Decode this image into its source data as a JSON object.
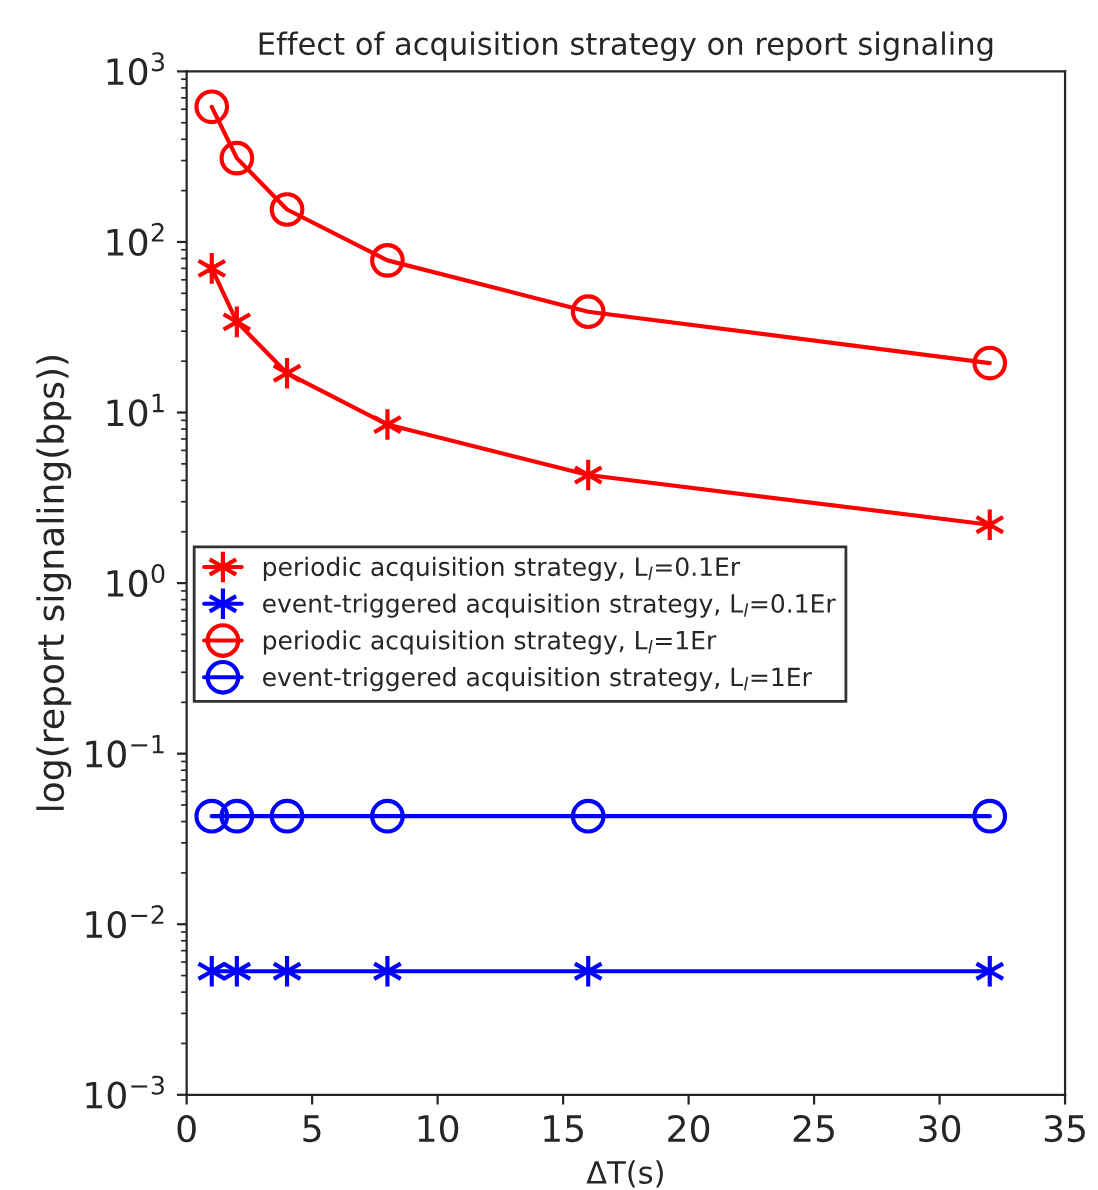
{
  "chart_data": {
    "type": "line",
    "title": "Effect of acquisition strategy on report signaling",
    "xlabel": "ΔT(s)",
    "ylabel": "log(report signaling(bps))",
    "x": [
      1,
      2,
      4,
      8,
      16,
      32
    ],
    "series": [
      {
        "name": "periodic acquisition strategy, L$_{l}$=0.1Er",
        "color": "#ff0000",
        "marker": "cross",
        "values": [
          70,
          34,
          17,
          8.5,
          4.3,
          2.2
        ]
      },
      {
        "name": "event-triggered acquisition strategy, L$_{l}$=0.1Er",
        "color": "#0000ff",
        "marker": "cross",
        "values": [
          0.0053,
          0.0053,
          0.0053,
          0.0053,
          0.0053,
          0.0053
        ]
      },
      {
        "name": "periodic acquisition strategy, L$_{l}$=1Er",
        "color": "#ff0000",
        "marker": "circle",
        "values": [
          620,
          310,
          155,
          78,
          39,
          19.5
        ]
      },
      {
        "name": "event-triggered acquisition strategy, L$_{l}$=1Er",
        "color": "#0000ff",
        "marker": "circle",
        "values": [
          0.043,
          0.043,
          0.043,
          0.043,
          0.043,
          0.043
        ]
      }
    ],
    "log": true,
    "grid": false,
    "legend": "left",
    "xlim": [
      0,
      35
    ],
    "xticks": [
      0,
      5,
      10,
      15,
      20,
      25,
      30,
      35
    ],
    "ylim": [
      0.001,
      1000
    ],
    "yticks": [
      {
        "value": 0.001,
        "label": "10$^{−3}$"
      },
      {
        "value": 0.01,
        "label": "10$^{−2}$"
      },
      {
        "value": 0.1,
        "label": "10$^{−1}$"
      },
      {
        "value": 1,
        "label": "10$^{0}$"
      },
      {
        "value": 10,
        "label": "10$^{1}$"
      },
      {
        "value": 100,
        "label": "10$^{2}$"
      },
      {
        "value": 1000,
        "label": "10$^{3}$"
      }
    ]
  }
}
